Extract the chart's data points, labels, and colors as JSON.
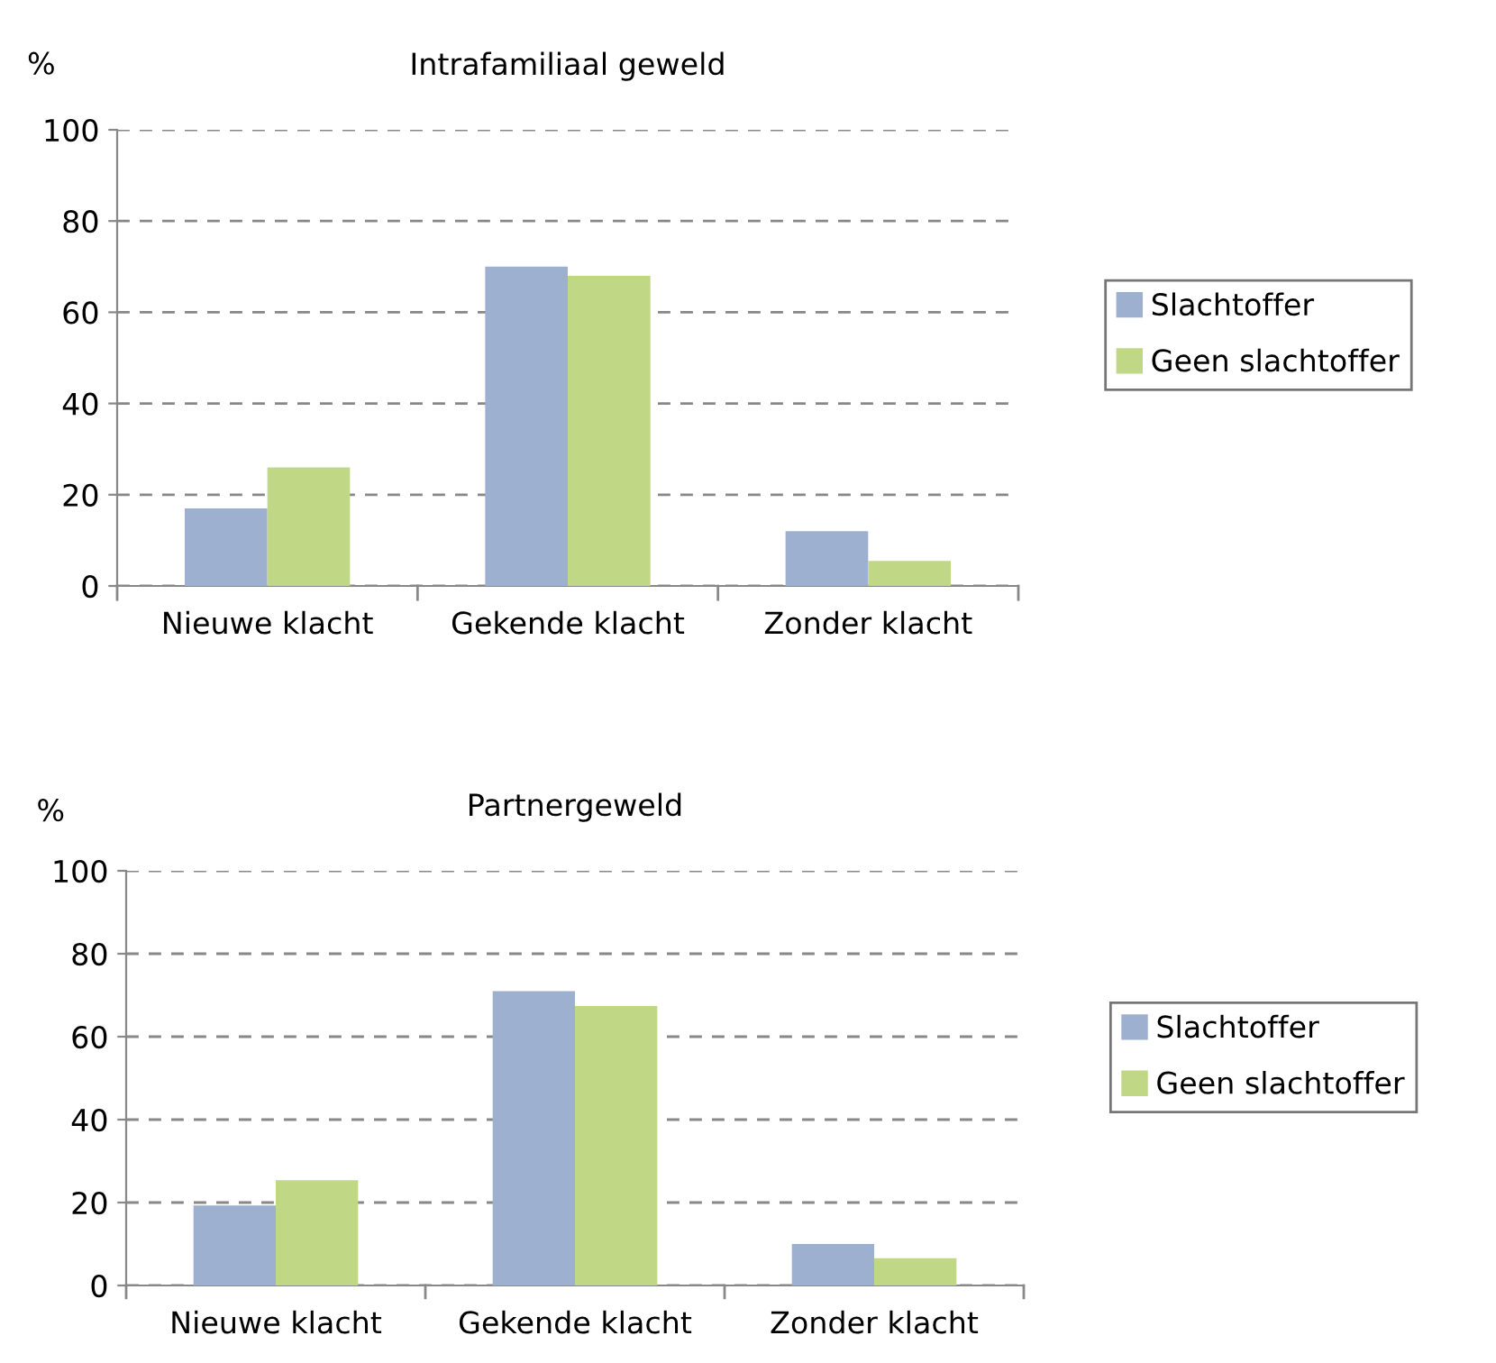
{
  "chart_data": [
    {
      "type": "bar",
      "title": "Intrafamiliaal geweld",
      "ylabel": "%",
      "categories": [
        "Nieuwe klacht",
        "Gekende klacht",
        "Zonder klacht"
      ],
      "series": [
        {
          "name": "Slachtoffer",
          "color": "#9eb0cf",
          "values": [
            17,
            70,
            12
          ]
        },
        {
          "name": "Geen slachtoffer",
          "color": "#c0d785",
          "values": [
            26,
            68,
            5.5
          ]
        }
      ],
      "ylim": [
        0,
        100
      ],
      "yticks": [
        0,
        20,
        40,
        60,
        80,
        100
      ],
      "grid": "y",
      "legend": "right"
    },
    {
      "type": "bar",
      "title": "Partnergeweld",
      "ylabel": "%",
      "categories": [
        "Nieuwe klacht",
        "Gekende klacht",
        "Zonder klacht"
      ],
      "series": [
        {
          "name": "Slachtoffer",
          "color": "#9eb0cf",
          "values": [
            19.3,
            71,
            10
          ]
        },
        {
          "name": "Geen slachtoffer",
          "color": "#c0d785",
          "values": [
            25.4,
            67.4,
            6.6
          ]
        }
      ],
      "ylim": [
        0,
        100
      ],
      "yticks": [
        0,
        20,
        40,
        60,
        80,
        100
      ],
      "grid": "y",
      "legend": "right"
    }
  ]
}
